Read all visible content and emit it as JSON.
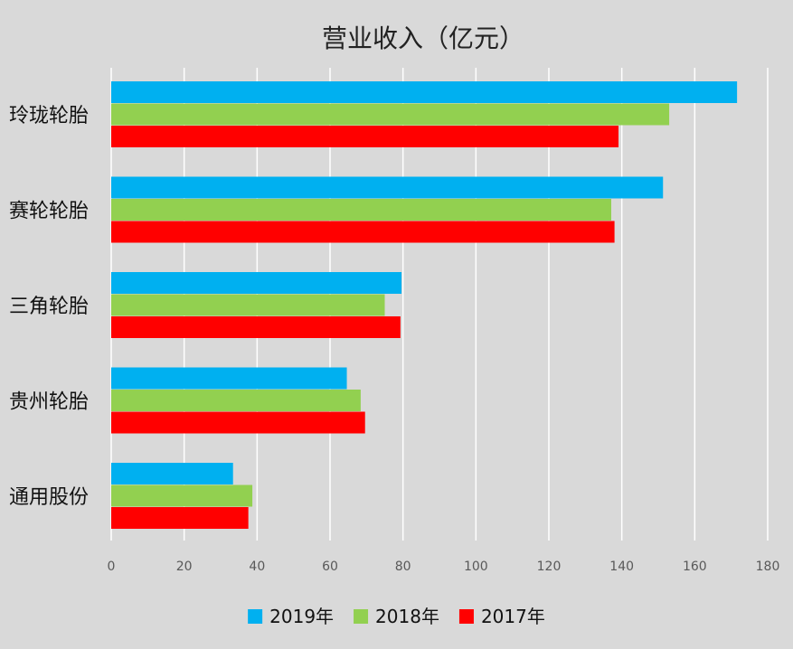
{
  "chart_data": {
    "type": "bar",
    "orientation": "horizontal",
    "title": "营业收入（亿元）",
    "categories": [
      "玲珑轮胎",
      "赛轮轮胎",
      "三角轮胎",
      "贵州轮胎",
      "通用股份"
    ],
    "series": [
      {
        "name": "2019年",
        "color": "#00b0f0",
        "values": [
          171.6,
          151.3,
          79.6,
          64.6,
          33.4
        ]
      },
      {
        "name": "2018年",
        "color": "#92d050",
        "values": [
          153.0,
          137.1,
          75.0,
          68.4,
          38.7
        ]
      },
      {
        "name": "2017年",
        "color": "#ff0000",
        "values": [
          139.1,
          138.0,
          79.3,
          69.6,
          37.6
        ]
      }
    ],
    "xlim": [
      0,
      180
    ],
    "x_ticks": [
      0,
      20,
      40,
      60,
      80,
      100,
      120,
      140,
      160,
      180
    ],
    "grid": true,
    "legend_position": "bottom"
  }
}
